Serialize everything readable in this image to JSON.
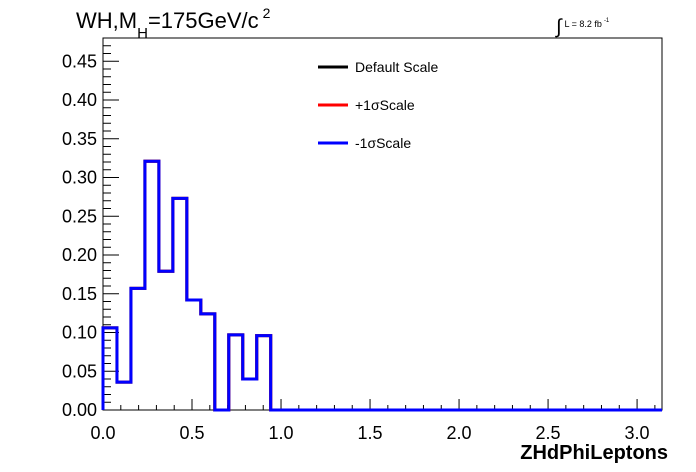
{
  "header": {
    "title_main": "WH,M",
    "title_sub": "H",
    "title_rest": "=175GeV/c",
    "title_sup": "2",
    "lumi_text": "L = 8.2 fb",
    "lumi_sup": "-1"
  },
  "colors": {
    "default": "#000000",
    "plus": "#ff0000",
    "minus": "#0000ff"
  },
  "chart_data": {
    "type": "line",
    "style": "step-histogram",
    "title": "WH,MH=175GeV/c2",
    "xlabel": "ZHdPhiLeptons",
    "ylabel": "",
    "xlim": [
      0,
      3.14
    ],
    "ylim": [
      0,
      0.48
    ],
    "grid": false,
    "legend_position": "top-center",
    "bin_edges": [
      0.0,
      0.0785,
      0.157,
      0.2355,
      0.314,
      0.3925,
      0.471,
      0.5495,
      0.628,
      0.7065,
      0.785,
      0.8635,
      0.942,
      1.0205,
      1.099,
      1.1775,
      1.256,
      1.3345,
      1.413,
      1.4915,
      1.57,
      1.6485,
      1.727,
      1.8055,
      1.884,
      1.9625,
      2.041,
      2.1195,
      2.198,
      2.2765,
      2.355,
      2.4335,
      2.512,
      2.5905,
      2.669,
      2.7475,
      2.826,
      2.9045,
      2.983,
      3.0615,
      3.14
    ],
    "series": [
      {
        "name": "Default Scale",
        "color": "#000000",
        "values": [
          0.106,
          0.036,
          0.157,
          0.321,
          0.179,
          0.273,
          0.142,
          0.124,
          0.0,
          0.097,
          0.04,
          0.096,
          0,
          0,
          0,
          0,
          0,
          0,
          0,
          0,
          0,
          0,
          0,
          0,
          0,
          0,
          0,
          0,
          0,
          0,
          0,
          0,
          0,
          0,
          0,
          0,
          0,
          0,
          0,
          0
        ]
      },
      {
        "name": "+1σScale",
        "color": "#ff0000",
        "values": [
          0.106,
          0.036,
          0.157,
          0.321,
          0.179,
          0.273,
          0.142,
          0.124,
          0.0,
          0.097,
          0.04,
          0.096,
          0,
          0,
          0,
          0,
          0,
          0,
          0,
          0,
          0,
          0,
          0,
          0,
          0,
          0,
          0,
          0,
          0,
          0,
          0,
          0,
          0,
          0,
          0,
          0,
          0,
          0,
          0,
          0
        ]
      },
      {
        "name": "-1σScale",
        "color": "#0000ff",
        "values": [
          0.106,
          0.036,
          0.157,
          0.321,
          0.179,
          0.273,
          0.142,
          0.124,
          0.0,
          0.097,
          0.04,
          0.096,
          0,
          0,
          0,
          0,
          0,
          0,
          0,
          0,
          0,
          0,
          0,
          0,
          0,
          0,
          0,
          0,
          0,
          0,
          0,
          0,
          0,
          0,
          0,
          0,
          0,
          0,
          0,
          0
        ]
      }
    ],
    "x_ticks": [
      0.0,
      0.5,
      1.0,
      1.5,
      2.0,
      2.5,
      3.0
    ],
    "x_tick_labels": [
      "0.0",
      "0.5",
      "1.0",
      "1.5",
      "2.0",
      "2.5",
      "3.0"
    ],
    "y_ticks": [
      0.0,
      0.05,
      0.1,
      0.15,
      0.2,
      0.25,
      0.3,
      0.35,
      0.4,
      0.45
    ],
    "y_tick_labels": [
      "0.00",
      "0.05",
      "0.10",
      "0.15",
      "0.20",
      "0.25",
      "0.30",
      "0.35",
      "0.40",
      "0.45"
    ]
  }
}
